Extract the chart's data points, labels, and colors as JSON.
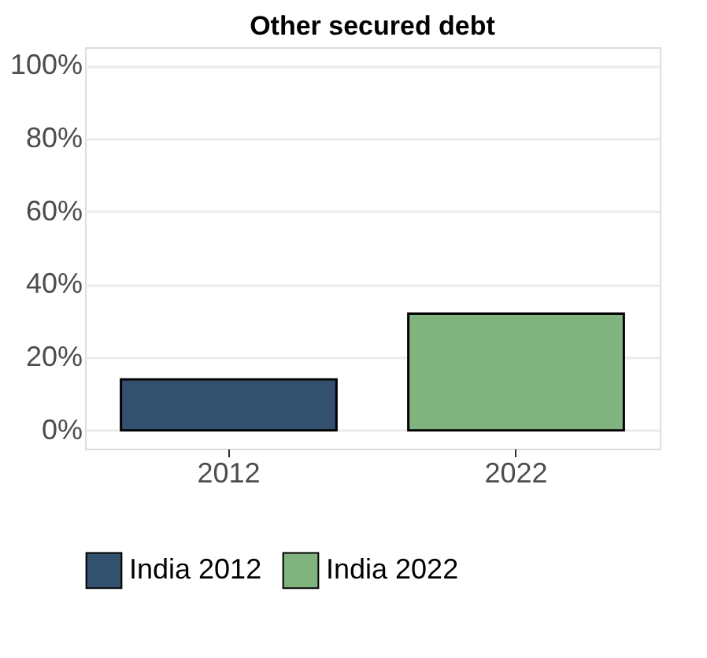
{
  "chart_data": {
    "type": "bar",
    "title": "Other secured debt",
    "categories": [
      "2012",
      "2022"
    ],
    "series": [
      {
        "name": "India 2012",
        "color": "#34506f",
        "values": [
          14,
          null
        ]
      },
      {
        "name": "India 2022",
        "color": "#80b37e",
        "values": [
          null,
          32
        ]
      }
    ],
    "ylim": [
      -5,
      105
    ],
    "yticks": [
      {
        "value": 0,
        "label": "0%"
      },
      {
        "value": 20,
        "label": "20%"
      },
      {
        "value": 40,
        "label": "40%"
      },
      {
        "value": 60,
        "label": "60%"
      },
      {
        "value": 80,
        "label": "80%"
      },
      {
        "value": 100,
        "label": "100%"
      }
    ],
    "grid": "y",
    "legend": "bottom"
  }
}
